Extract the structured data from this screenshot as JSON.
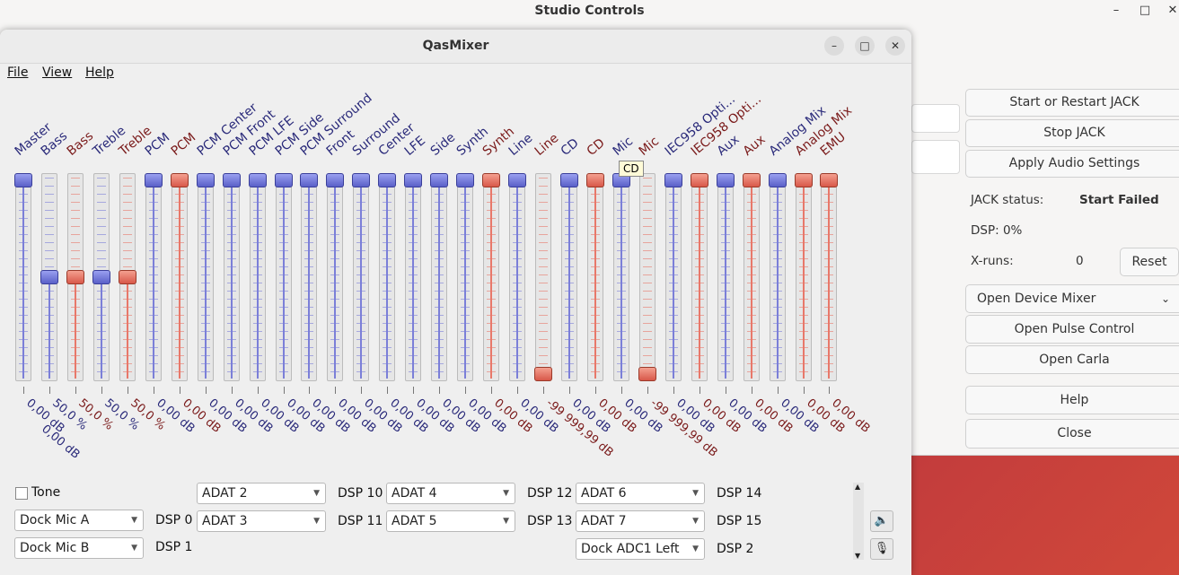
{
  "background_window": {
    "title": "Studio Controls",
    "controls": [
      "–",
      "□",
      "✕"
    ],
    "buttons": {
      "start_jack": "Start or Restart  JACK",
      "stop_jack": "Stop JACK",
      "apply_audio": "Apply Audio Settings",
      "reset": "Reset",
      "device_mixer": "Open Device Mixer",
      "pulse_control": "Open Pulse Control",
      "carla": "Open Carla",
      "help": "Help",
      "close": "Close"
    },
    "status": {
      "jack_status_label": "JACK status:",
      "jack_status_value": "Start Failed",
      "dsp_label": "DSP: 0%",
      "xruns_label": "X-runs:",
      "xruns_value": "0"
    }
  },
  "mixer": {
    "title": "QasMixer",
    "window_controls": [
      "–",
      "□",
      "✕"
    ],
    "menu": [
      "File",
      "View",
      "Help"
    ],
    "tooltip": "CD",
    "channels": [
      {
        "name": "Master",
        "color": "blue",
        "level": 1.0,
        "value": "0,00 dB",
        "value2": ""
      },
      {
        "name": "Bass",
        "color": "blue",
        "level": 0.5,
        "value": "50,0 %",
        "value2": "0,00 dB"
      },
      {
        "name": "Bass",
        "color": "red",
        "level": 0.5,
        "value": "50,0 %",
        "value2": ""
      },
      {
        "name": "Treble",
        "color": "blue",
        "level": 0.5,
        "value": "50,0 %",
        "value2": ""
      },
      {
        "name": "Treble",
        "color": "red",
        "level": 0.5,
        "value": "50,0 %",
        "value2": ""
      },
      {
        "name": "PCM",
        "color": "blue",
        "level": 1.0,
        "value": "0,00 dB",
        "value2": ""
      },
      {
        "name": "PCM",
        "color": "red",
        "level": 1.0,
        "value": "0,00 dB",
        "value2": ""
      },
      {
        "name": "PCM Center",
        "color": "blue",
        "level": 1.0,
        "value": "0,00 dB",
        "value2": ""
      },
      {
        "name": "PCM Front",
        "color": "blue",
        "level": 1.0,
        "value": "0,00 dB",
        "value2": ""
      },
      {
        "name": "PCM LFE",
        "color": "blue",
        "level": 1.0,
        "value": "0,00 dB",
        "value2": ""
      },
      {
        "name": "PCM Side",
        "color": "blue",
        "level": 1.0,
        "value": "0,00 dB",
        "value2": ""
      },
      {
        "name": "PCM Surround",
        "color": "blue",
        "level": 1.0,
        "value": "0,00 dB",
        "value2": ""
      },
      {
        "name": "Front",
        "color": "blue",
        "level": 1.0,
        "value": "0,00 dB",
        "value2": ""
      },
      {
        "name": "Surround",
        "color": "blue",
        "level": 1.0,
        "value": "0,00 dB",
        "value2": ""
      },
      {
        "name": "Center",
        "color": "blue",
        "level": 1.0,
        "value": "0,00 dB",
        "value2": ""
      },
      {
        "name": "LFE",
        "color": "blue",
        "level": 1.0,
        "value": "0,00 dB",
        "value2": ""
      },
      {
        "name": "Side",
        "color": "blue",
        "level": 1.0,
        "value": "0,00 dB",
        "value2": ""
      },
      {
        "name": "Synth",
        "color": "blue",
        "level": 1.0,
        "value": "0,00 dB",
        "value2": ""
      },
      {
        "name": "Synth",
        "color": "red",
        "level": 1.0,
        "value": "0,00 dB",
        "value2": ""
      },
      {
        "name": "Line",
        "color": "blue",
        "level": 1.0,
        "value": "0,00 dB",
        "value2": ""
      },
      {
        "name": "Line",
        "color": "red",
        "level": 0.0,
        "value": "-99 999,99 dB",
        "value2": ""
      },
      {
        "name": "CD",
        "color": "blue",
        "level": 1.0,
        "value": "0,00 dB",
        "value2": ""
      },
      {
        "name": "CD",
        "color": "red",
        "level": 1.0,
        "value": "0,00 dB",
        "value2": ""
      },
      {
        "name": "Mic",
        "color": "blue",
        "level": 1.0,
        "value": "0,00 dB",
        "value2": ""
      },
      {
        "name": "Mic",
        "color": "red",
        "level": 0.0,
        "value": "-99 999,99 dB",
        "value2": ""
      },
      {
        "name": "IEC958 Opti...",
        "color": "blue",
        "level": 1.0,
        "value": "0,00 dB",
        "value2": ""
      },
      {
        "name": "IEC958 Opti...",
        "color": "red",
        "level": 1.0,
        "value": "0,00 dB",
        "value2": ""
      },
      {
        "name": "Aux",
        "color": "blue",
        "level": 1.0,
        "value": "0,00 dB",
        "value2": ""
      },
      {
        "name": "Aux",
        "color": "red",
        "level": 1.0,
        "value": "0,00 dB",
        "value2": ""
      },
      {
        "name": "Analog Mix",
        "color": "blue",
        "level": 1.0,
        "value": "0,00 dB",
        "value2": ""
      },
      {
        "name": "Analog Mix",
        "color": "red",
        "level": 1.0,
        "value": "0,00 dB",
        "value2": ""
      },
      {
        "name": "EMU",
        "color": "red",
        "level": 1.0,
        "value": "0,00 dB",
        "value2": ""
      }
    ],
    "switches": {
      "tone_label": "Tone",
      "combos": {
        "dock_mic_a": "Dock Mic A",
        "dock_mic_b": "Dock Mic B",
        "adat2": "ADAT 2",
        "adat3": "ADAT 3",
        "adat4": "ADAT 4",
        "adat5": "ADAT 5",
        "adat6": "ADAT 6",
        "adat7": "ADAT 7",
        "dock_adc1_left": "Dock ADC1 Left"
      },
      "labels": {
        "dsp0": "DSP 0",
        "dsp1": "DSP 1",
        "dsp10": "DSP 10",
        "dsp11": "DSP 11",
        "dsp12": "DSP 12",
        "dsp13": "DSP 13",
        "dsp14": "DSP 14",
        "dsp15": "DSP 15",
        "dsp2": "DSP 2"
      }
    }
  },
  "colors": {
    "blue": "#2a2a7a",
    "blue_fill": "#7b7fd8",
    "red": "#7a1a1a",
    "red_fill": "#e8786a"
  }
}
